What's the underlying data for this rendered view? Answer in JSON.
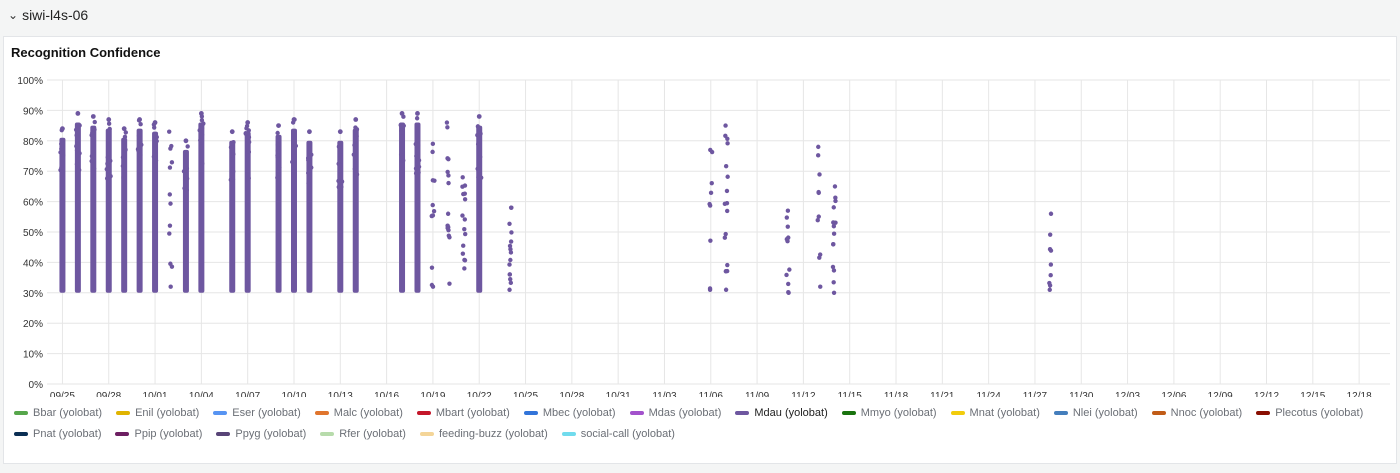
{
  "row": {
    "chevron": "⌄",
    "title": "siwi-l4s-06"
  },
  "panel": {
    "title": "Recognition Confidence"
  },
  "chart_data": {
    "type": "scatter",
    "title": "Recognition Confidence",
    "xlabel": "",
    "ylabel": "",
    "ylim": [
      0,
      100
    ],
    "y_ticks": [
      "0%",
      "10%",
      "20%",
      "30%",
      "40%",
      "50%",
      "60%",
      "70%",
      "80%",
      "90%",
      "100%"
    ],
    "x_ticks": [
      "09/25",
      "09/28",
      "10/01",
      "10/04",
      "10/07",
      "10/10",
      "10/13",
      "10/16",
      "10/19",
      "10/22",
      "10/25",
      "10/28",
      "10/31",
      "11/03",
      "11/06",
      "11/09",
      "11/12",
      "11/15",
      "11/18",
      "11/21",
      "11/24",
      "11/27",
      "11/30",
      "12/03",
      "12/06",
      "12/09",
      "12/12",
      "12/15",
      "12/18"
    ],
    "x_range": [
      "2023-09-24",
      "2023-12-20"
    ],
    "grid": true,
    "legend_position": "bottom",
    "series": [
      {
        "name": "Mdau (yolobat)",
        "color": "#6e57a0",
        "clusters": [
          {
            "date": "2023-09-25",
            "min": 30,
            "max": 84,
            "dense": true
          },
          {
            "date": "2023-09-26",
            "min": 30,
            "max": 89,
            "dense": true
          },
          {
            "date": "2023-09-27",
            "min": 30,
            "max": 88,
            "dense": true
          },
          {
            "date": "2023-09-28",
            "min": 30,
            "max": 87,
            "dense": true
          },
          {
            "date": "2023-09-29",
            "min": 30,
            "max": 84,
            "dense": true
          },
          {
            "date": "2023-09-30",
            "min": 30,
            "max": 87,
            "dense": true
          },
          {
            "date": "2023-10-01",
            "min": 30,
            "max": 86,
            "dense": true
          },
          {
            "date": "2023-10-02",
            "min": 32,
            "max": 83,
            "dense": false
          },
          {
            "date": "2023-10-03",
            "min": 30,
            "max": 80,
            "dense": true
          },
          {
            "date": "2023-10-04",
            "min": 30,
            "max": 89,
            "dense": true
          },
          {
            "date": "2023-10-06",
            "min": 30,
            "max": 83,
            "dense": true
          },
          {
            "date": "2023-10-07",
            "min": 30,
            "max": 86,
            "dense": true
          },
          {
            "date": "2023-10-09",
            "min": 30,
            "max": 85,
            "dense": true
          },
          {
            "date": "2023-10-10",
            "min": 30,
            "max": 87,
            "dense": true
          },
          {
            "date": "2023-10-11",
            "min": 30,
            "max": 83,
            "dense": true
          },
          {
            "date": "2023-10-13",
            "min": 30,
            "max": 83,
            "dense": true
          },
          {
            "date": "2023-10-14",
            "min": 30,
            "max": 87,
            "dense": true
          },
          {
            "date": "2023-10-17",
            "min": 30,
            "max": 89,
            "dense": true
          },
          {
            "date": "2023-10-18",
            "min": 30,
            "max": 89,
            "dense": true
          },
          {
            "date": "2023-10-19",
            "min": 32,
            "max": 79,
            "dense": false
          },
          {
            "date": "2023-10-20",
            "min": 33,
            "max": 86,
            "dense": false
          },
          {
            "date": "2023-10-21",
            "min": 38,
            "max": 68,
            "dense": false
          },
          {
            "date": "2023-10-22",
            "min": 30,
            "max": 88,
            "dense": true
          },
          {
            "date": "2023-10-24",
            "min": 31,
            "max": 58,
            "dense": false
          },
          {
            "date": "2023-11-06",
            "min": 31,
            "max": 77,
            "dense": false
          },
          {
            "date": "2023-11-07",
            "min": 31,
            "max": 85,
            "dense": false
          },
          {
            "date": "2023-11-11",
            "min": 30,
            "max": 57,
            "dense": false
          },
          {
            "date": "2023-11-13",
            "min": 32,
            "max": 78,
            "dense": false
          },
          {
            "date": "2023-11-14",
            "min": 30,
            "max": 65,
            "dense": false
          },
          {
            "date": "2023-11-28",
            "min": 31,
            "max": 56,
            "dense": false
          }
        ]
      }
    ]
  },
  "legend": [
    {
      "label": "Bbar (yolobat)",
      "color": "#56a64b"
    },
    {
      "label": "Enil (yolobat)",
      "color": "#e0b400"
    },
    {
      "label": "Eser (yolobat)",
      "color": "#5794f2"
    },
    {
      "label": "Malc (yolobat)",
      "color": "#e0752d"
    },
    {
      "label": "Mbart (yolobat)",
      "color": "#c4162a"
    },
    {
      "label": "Mbec (yolobat)",
      "color": "#3274d9"
    },
    {
      "label": "Mdas (yolobat)",
      "color": "#a352cc"
    },
    {
      "label": "Mdau (yolobat)",
      "color": "#6e57a0"
    },
    {
      "label": "Mmyo (yolobat)",
      "color": "#19730e"
    },
    {
      "label": "Mnat (yolobat)",
      "color": "#f2cc0c"
    },
    {
      "label": "Nlei (yolobat)",
      "color": "#447ebc"
    },
    {
      "label": "Nnoc (yolobat)",
      "color": "#c15c17"
    },
    {
      "label": "Plecotus (yolobat)",
      "color": "#890f02"
    },
    {
      "label": "Pnat (yolobat)",
      "color": "#0a2e53"
    },
    {
      "label": "Ppip (yolobat)",
      "color": "#6d1f62"
    },
    {
      "label": "Ppyg (yolobat)",
      "color": "#584477"
    },
    {
      "label": "Rfer (yolobat)",
      "color": "#b7dbab"
    },
    {
      "label": "feeding-buzz (yolobat)",
      "color": "#f4d598"
    },
    {
      "label": "social-call (yolobat)",
      "color": "#70dbed"
    }
  ]
}
